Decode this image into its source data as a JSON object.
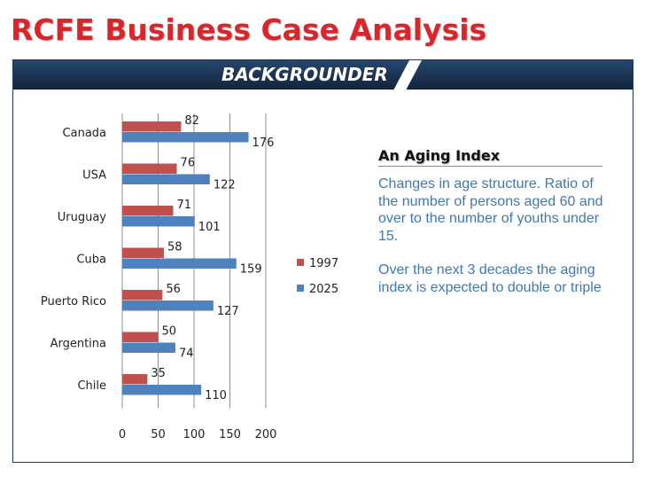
{
  "slide": {
    "title": "RCFE Business Case Analysis",
    "banner": "BACKGROUNDER",
    "side_heading": "An Aging Index",
    "paragraph_1": "Changes in age structure. Ratio of the number of persons aged 60 and over to the number of youths under 15.",
    "paragraph_2": "Over the next 3 decades the aging index is expected to double or triple"
  },
  "chart_data": {
    "type": "bar",
    "orientation": "horizontal",
    "categories": [
      "Canada",
      "USA",
      "Uruguay",
      "Cuba",
      "Puerto Rico",
      "Argentina",
      "Chile"
    ],
    "series": [
      {
        "name": "1997",
        "values": [
          82,
          76,
          71,
          58,
          56,
          50,
          35
        ],
        "color": "#c0504d"
      },
      {
        "name": "2025",
        "values": [
          176,
          122,
          101,
          159,
          127,
          74,
          110
        ],
        "color": "#4f81bd"
      }
    ],
    "x_ticks": [
      "0",
      "50",
      "100",
      "150",
      "200"
    ],
    "xlim": [
      0,
      200
    ],
    "grid": "vertical",
    "legend": "right"
  }
}
